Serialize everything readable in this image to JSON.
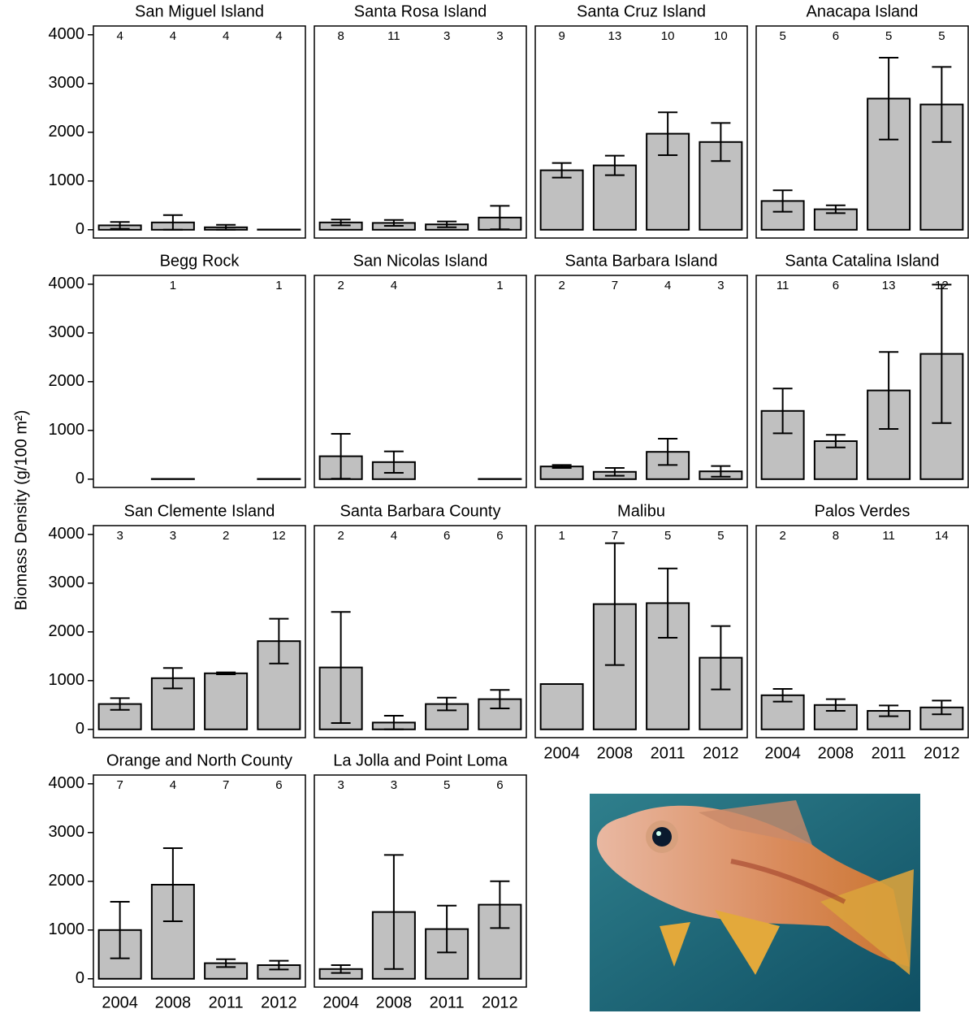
{
  "ylabel": "Biomass Density (g/100 m²)",
  "chart_data": [
    {
      "type": "bar",
      "title": "San Miguel Island",
      "categories": [
        "2004",
        "2008",
        "2011",
        "2012"
      ],
      "values": [
        90,
        150,
        50,
        5
      ],
      "errors": [
        70,
        150,
        50,
        0
      ],
      "counts": [
        4,
        4,
        4,
        4
      ],
      "color": "#c0c0c0",
      "ylim": [
        -170,
        4180
      ],
      "yticks": [
        0,
        1000,
        2000,
        3000,
        4000
      ]
    },
    {
      "type": "bar",
      "title": "Santa Rosa Island",
      "categories": [
        "2004",
        "2008",
        "2011",
        "2012"
      ],
      "values": [
        150,
        140,
        110,
        250
      ],
      "errors": [
        60,
        60,
        60,
        240
      ],
      "counts": [
        8,
        11,
        3,
        3
      ],
      "color": "#c0c0c0",
      "ylim": [
        -170,
        4180
      ],
      "yticks": [
        0,
        1000,
        2000,
        3000,
        4000
      ]
    },
    {
      "type": "bar",
      "title": "Santa Cruz Island",
      "categories": [
        "2004",
        "2008",
        "2011",
        "2012"
      ],
      "values": [
        1220,
        1320,
        1970,
        1800
      ],
      "errors": [
        150,
        200,
        440,
        390
      ],
      "counts": [
        9,
        13,
        10,
        10
      ],
      "color": "#c0c0c0",
      "ylim": [
        -170,
        4180
      ],
      "yticks": [
        0,
        1000,
        2000,
        3000,
        4000
      ]
    },
    {
      "type": "bar",
      "title": "Anacapa Island",
      "categories": [
        "2004",
        "2008",
        "2011",
        "2012"
      ],
      "values": [
        590,
        420,
        2690,
        2570
      ],
      "errors": [
        220,
        80,
        840,
        770
      ],
      "counts": [
        5,
        6,
        5,
        5
      ],
      "color": "#c0c0c0",
      "ylim": [
        -170,
        4180
      ],
      "yticks": [
        0,
        1000,
        2000,
        3000,
        4000
      ]
    },
    {
      "type": "bar",
      "title": "Begg Rock",
      "categories": [
        "2004",
        "2008",
        "2011",
        "2012"
      ],
      "values": [
        null,
        5,
        null,
        5
      ],
      "errors": [
        null,
        0,
        null,
        0
      ],
      "counts": [
        null,
        1,
        null,
        1
      ],
      "color": "#c0c0c0",
      "ylim": [
        -170,
        4180
      ],
      "yticks": [
        0,
        1000,
        2000,
        3000,
        4000
      ]
    },
    {
      "type": "bar",
      "title": "San Nicolas Island",
      "categories": [
        "2004",
        "2008",
        "2011",
        "2012"
      ],
      "values": [
        470,
        350,
        null,
        5
      ],
      "errors": [
        460,
        220,
        null,
        0
      ],
      "counts": [
        2,
        4,
        null,
        1
      ],
      "color": "#c0c0c0",
      "ylim": [
        -170,
        4180
      ],
      "yticks": [
        0,
        1000,
        2000,
        3000,
        4000
      ]
    },
    {
      "type": "bar",
      "title": "Santa Barbara Island",
      "categories": [
        "2004",
        "2008",
        "2011",
        "2012"
      ],
      "values": [
        260,
        150,
        560,
        160
      ],
      "errors": [
        30,
        80,
        270,
        110
      ],
      "counts": [
        2,
        7,
        4,
        3
      ],
      "color": "#c0c0c0",
      "ylim": [
        -170,
        4180
      ],
      "yticks": [
        0,
        1000,
        2000,
        3000,
        4000
      ]
    },
    {
      "type": "bar",
      "title": "Santa Catalina Island",
      "categories": [
        "2004",
        "2008",
        "2011",
        "2012"
      ],
      "values": [
        1400,
        780,
        1820,
        2570
      ],
      "errors": [
        460,
        130,
        790,
        1420
      ],
      "counts": [
        11,
        6,
        13,
        12
      ],
      "color": "#c0c0c0",
      "ylim": [
        -170,
        4180
      ],
      "yticks": [
        0,
        1000,
        2000,
        3000,
        4000
      ]
    },
    {
      "type": "bar",
      "title": "San Clemente Island",
      "categories": [
        "2004",
        "2008",
        "2011",
        "2012"
      ],
      "values": [
        520,
        1050,
        1150,
        1810
      ],
      "errors": [
        120,
        210,
        20,
        460
      ],
      "counts": [
        3,
        3,
        2,
        12
      ],
      "color": "#c0c0c0",
      "ylim": [
        -170,
        4180
      ],
      "yticks": [
        0,
        1000,
        2000,
        3000,
        4000
      ]
    },
    {
      "type": "bar",
      "title": "Santa Barbara County",
      "categories": [
        "2004",
        "2008",
        "2011",
        "2012"
      ],
      "values": [
        1270,
        140,
        520,
        620
      ],
      "errors": [
        1140,
        140,
        130,
        190
      ],
      "counts": [
        2,
        4,
        6,
        6
      ],
      "color": "#c0c0c0",
      "ylim": [
        -170,
        4180
      ],
      "yticks": [
        0,
        1000,
        2000,
        3000,
        4000
      ]
    },
    {
      "type": "bar",
      "title": "Malibu",
      "categories": [
        "2004",
        "2008",
        "2011",
        "2012"
      ],
      "values": [
        930,
        2570,
        2590,
        1470
      ],
      "errors": [
        null,
        1250,
        710,
        650
      ],
      "counts": [
        1,
        7,
        5,
        5
      ],
      "color": "#c0c0c0",
      "ylim": [
        -170,
        4180
      ],
      "yticks": [
        0,
        1000,
        2000,
        3000,
        4000
      ]
    },
    {
      "type": "bar",
      "title": "Palos Verdes",
      "categories": [
        "2004",
        "2008",
        "2011",
        "2012"
      ],
      "values": [
        700,
        500,
        380,
        450
      ],
      "errors": [
        130,
        120,
        110,
        140
      ],
      "counts": [
        2,
        8,
        11,
        14
      ],
      "color": "#c0c0c0",
      "ylim": [
        -170,
        4180
      ],
      "yticks": [
        0,
        1000,
        2000,
        3000,
        4000
      ]
    },
    {
      "type": "bar",
      "title": "Orange and North County",
      "categories": [
        "2004",
        "2008",
        "2011",
        "2012"
      ],
      "values": [
        1000,
        1930,
        320,
        280
      ],
      "errors": [
        580,
        750,
        80,
        90
      ],
      "counts": [
        7,
        4,
        7,
        6
      ],
      "color": "#c0c0c0",
      "ylim": [
        -170,
        4180
      ],
      "yticks": [
        0,
        1000,
        2000,
        3000,
        4000
      ]
    },
    {
      "type": "bar",
      "title": "La Jolla and Point Loma",
      "categories": [
        "2004",
        "2008",
        "2011",
        "2012"
      ],
      "values": [
        200,
        1370,
        1020,
        1520
      ],
      "errors": [
        80,
        1170,
        480,
        480
      ],
      "counts": [
        3,
        3,
        5,
        6
      ],
      "color": "#c0c0c0",
      "ylim": [
        -170,
        4180
      ],
      "yticks": [
        0,
        1000,
        2000,
        3000,
        4000
      ]
    }
  ]
}
